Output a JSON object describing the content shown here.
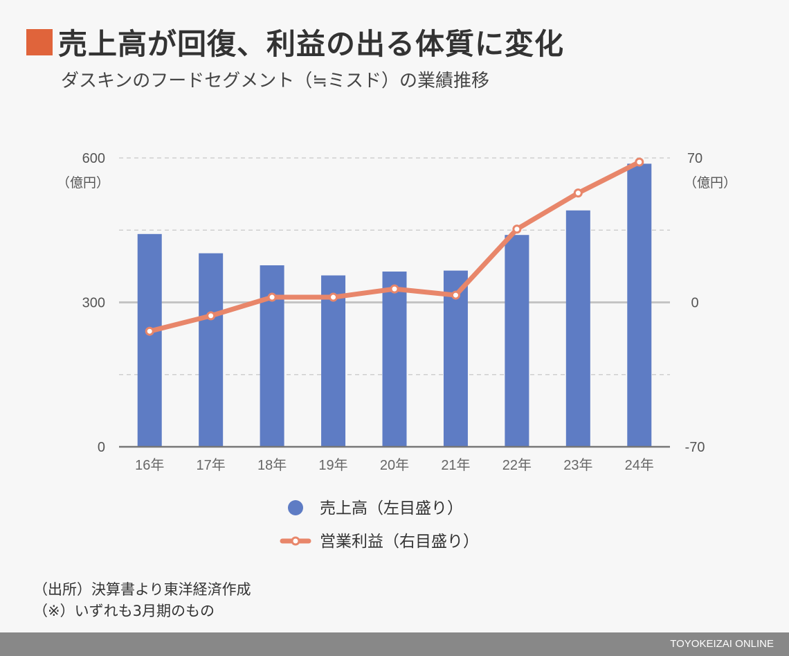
{
  "title": "売上高が回復、利益の出る体質に変化",
  "subtitle": "ダスキンのフードセグメント（≒ミスド）の業績推移",
  "notes": {
    "source": "（出所）決算書より東洋経済作成",
    "remark": "（※）いずれも3月期のもの"
  },
  "footer": "TOYOKEIZAI ONLINE",
  "colors": {
    "bar": "#5e7cc4",
    "line": "#e8866a",
    "accent": "#e0643b"
  },
  "chart_data": {
    "type": "bar",
    "categories": [
      "16年",
      "17年",
      "18年",
      "19年",
      "20年",
      "21年",
      "22年",
      "23年",
      "24年"
    ],
    "series": [
      {
        "name": "売上高（左目盛り）",
        "type": "bar",
        "axis": "left",
        "values": [
          442,
          402,
          377,
          356,
          364,
          366,
          440,
          491,
          588
        ]
      },
      {
        "name": "営業利益（右目盛り）",
        "type": "line",
        "axis": "right",
        "values": [
          -14,
          -6.5,
          2.5,
          2.5,
          6.5,
          3.5,
          35.5,
          53,
          68
        ]
      }
    ],
    "left_axis": {
      "ticks": [
        "600",
        "300",
        "0"
      ],
      "ylim": [
        0,
        600
      ],
      "unit": "（億円）"
    },
    "right_axis": {
      "ticks": [
        "70",
        "0",
        "-70"
      ],
      "ylim": [
        -70,
        70
      ],
      "unit": "（億円）"
    },
    "legend": {
      "position": "bottom"
    }
  }
}
